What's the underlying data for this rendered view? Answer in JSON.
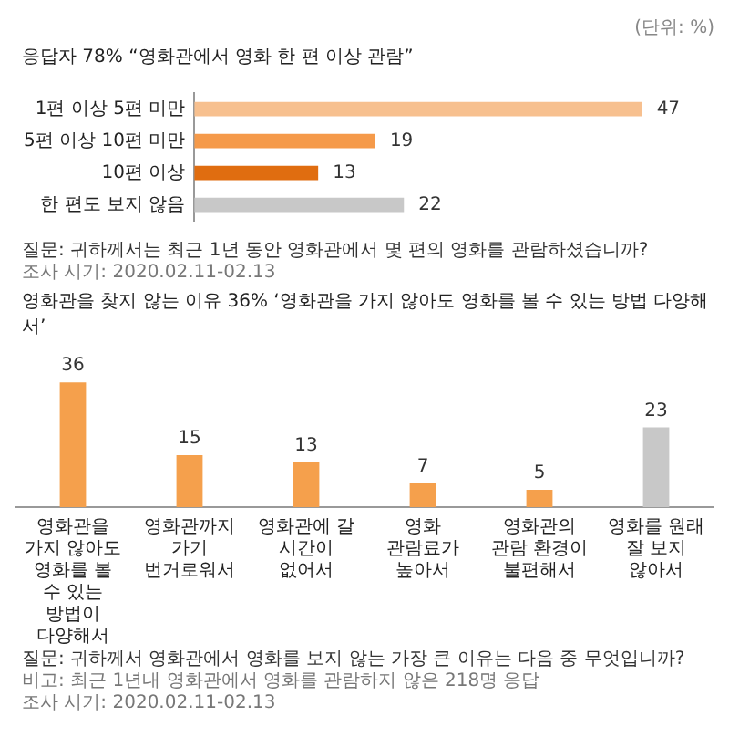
{
  "chart_data": [
    {
      "type": "bar",
      "orientation": "horizontal",
      "title": "응답자 78% “영화관에서 영화 한 편 이상 관람”",
      "subtitle": "(단위: %)",
      "categories": [
        "1편 이상 5편 미만",
        "5편 이상 10편 미만",
        "10편 이상",
        "한 편도 보지 않음"
      ],
      "values": [
        47,
        19,
        13,
        22
      ],
      "colors": [
        "#f7c08f",
        "#f59a4a",
        "#e06d10",
        "#c8c8c8"
      ],
      "data_labels": true,
      "grid": false,
      "legend": false,
      "tick_labels": "y",
      "annotations": [
        "질문: 귀하께서는 최근 1년 동안 영화관에서 몇 편의 영화를 관람하셨습니까?",
        "조사 시기: 2020.02.11-02.13"
      ]
    },
    {
      "type": "bar",
      "title": "영화관을 찾지 않는 이유 36% ‘영화관을 가지 않아도 영화를 볼 수 있는 방법 다양해서’",
      "categories": [
        "영화관을 가지 않아도 영화를 볼 수 있는 방법이 다양해서",
        "영화관까지 가기 번거로워서",
        "영화관에 갈 시간이 없어서",
        "영화 관람료가 높아서",
        "영화관의 관람 환경이 불편해서",
        "영화를 원래 잘 보지 않아서"
      ],
      "values": [
        36,
        15,
        13,
        7,
        5,
        23
      ],
      "colors": [
        "#f5a04c",
        "#f5a04c",
        "#f5a04c",
        "#f5a04c",
        "#f5a04c",
        "#c8c8c8"
      ],
      "data_labels": true,
      "grid": false,
      "legend": false,
      "tick_labels": "x",
      "annotations": [
        "질문: 귀하께서 영화관에서 영화를 보지 않는 가장 큰 이유는 다음 중 무엇입니까?",
        "비고: 최근 1년내 영화관에서 영화를 관람하지 않은 218명 응답",
        "조사 시기: 2020.02.11-02.13"
      ]
    }
  ]
}
